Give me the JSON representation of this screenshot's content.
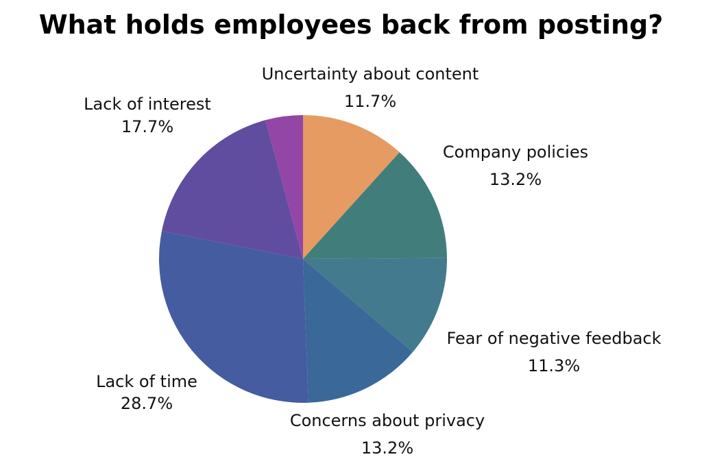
{
  "chart_data": {
    "type": "pie",
    "title": "What holds employees back from posting?",
    "start_angle_deg": 0,
    "direction": "clockwise",
    "slices": [
      {
        "label": "Uncertainty about content",
        "value": 11.7,
        "value_label": "11.7%",
        "color": "#E59B62"
      },
      {
        "label": "Company policies",
        "value": 13.2,
        "value_label": "13.2%",
        "color": "#417E7B"
      },
      {
        "label": "Fear of negative feedback",
        "value": 11.3,
        "value_label": "11.3%",
        "color": "#437A8E"
      },
      {
        "label": "Concerns about privacy",
        "value": 13.2,
        "value_label": "13.2%",
        "color": "#3A6898"
      },
      {
        "label": "Lack of time",
        "value": 28.7,
        "value_label": "28.7%",
        "color": "#465CA0"
      },
      {
        "label": "Lack of interest",
        "value": 17.7,
        "value_label": "17.7%",
        "color": "#614DA0"
      },
      {
        "label": "",
        "value": 4.2,
        "value_label": "",
        "color": "#9346A6"
      }
    ]
  }
}
